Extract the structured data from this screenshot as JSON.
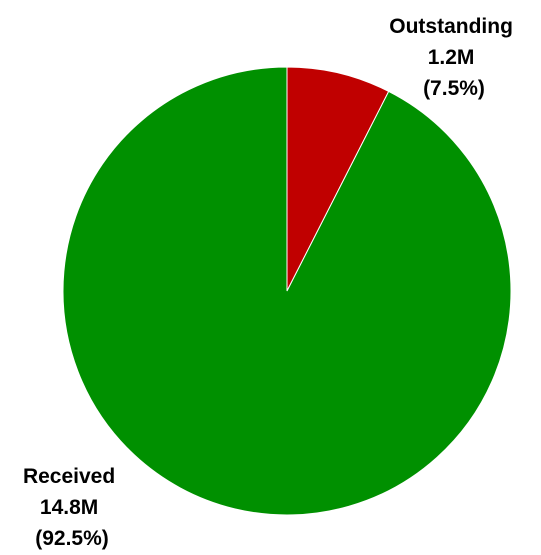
{
  "chart_data": {
    "type": "pie",
    "start": "top",
    "direction": "clockwise",
    "slices": [
      {
        "category": "Outstanding",
        "value": 1.2,
        "value_label": "1.2M",
        "percent_label": "(7.5%)",
        "color": "#c00000"
      },
      {
        "category": "Received",
        "value": 14.8,
        "value_label": "14.8M",
        "percent_label": "(92.5%)",
        "color": "#009000"
      }
    ]
  }
}
